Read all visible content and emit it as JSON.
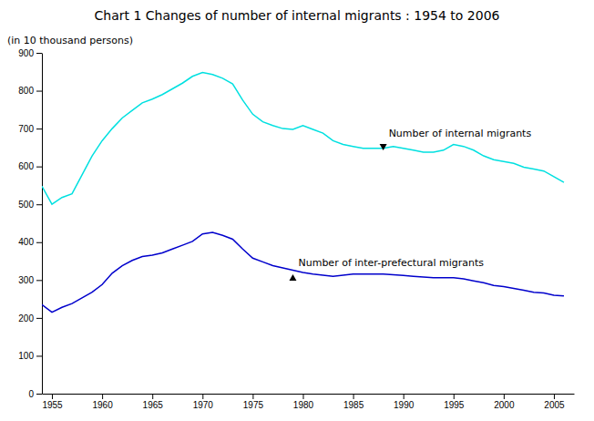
{
  "chart_data": {
    "type": "line",
    "title": "Chart 1    Changes of number of internal migrants : 1954 to 2006",
    "ylabel": "(in 10 thousand persons)",
    "x": [
      1954,
      1955,
      1956,
      1957,
      1958,
      1959,
      1960,
      1961,
      1962,
      1963,
      1964,
      1965,
      1966,
      1967,
      1968,
      1969,
      1970,
      1971,
      1972,
      1973,
      1974,
      1975,
      1976,
      1977,
      1978,
      1979,
      1980,
      1981,
      1982,
      1983,
      1984,
      1985,
      1986,
      1987,
      1988,
      1989,
      1990,
      1991,
      1992,
      1993,
      1994,
      1995,
      1996,
      1997,
      1998,
      1999,
      2000,
      2001,
      2002,
      2003,
      2004,
      2005,
      2006
    ],
    "series": [
      {
        "color": "#00e0e0",
        "values": [
          548,
          500,
          518,
          528,
          578,
          628,
          668,
          700,
          728,
          748,
          768,
          778,
          790,
          805,
          820,
          838,
          848,
          843,
          833,
          818,
          775,
          738,
          718,
          708,
          700,
          698,
          708,
          698,
          688,
          668,
          658,
          653,
          648,
          648,
          648,
          653,
          648,
          643,
          638,
          638,
          643,
          658,
          653,
          643,
          628,
          618,
          613,
          608,
          598,
          593,
          588,
          573,
          558
        ]
      },
      {
        "color": "#0000cc",
        "values": [
          235,
          215,
          228,
          238,
          253,
          268,
          288,
          318,
          338,
          352,
          362,
          366,
          372,
          382,
          392,
          402,
          422,
          426,
          418,
          408,
          382,
          358,
          348,
          338,
          332,
          326,
          320,
          316,
          313,
          310,
          313,
          316,
          316,
          316,
          316,
          314,
          312,
          310,
          308,
          306,
          306,
          306,
          303,
          298,
          293,
          286,
          283,
          278,
          273,
          268,
          266,
          260,
          258
        ]
      }
    ],
    "annotations": [
      {
        "text": "Number of internal migrants",
        "x": 1988,
        "y": 650,
        "marker": "triangle-down"
      },
      {
        "text": "Number of inter-prefectural migrants",
        "x": 1979,
        "y": 308,
        "marker": "triangle-up"
      }
    ],
    "xlim": [
      1954,
      2007
    ],
    "xticks": [
      1955,
      1960,
      1965,
      1970,
      1975,
      1980,
      1985,
      1990,
      1995,
      2000,
      2005
    ],
    "ylim": [
      0,
      900
    ],
    "yticks": [
      0,
      100,
      200,
      300,
      400,
      500,
      600,
      700,
      800,
      900
    ],
    "grid": false
  }
}
